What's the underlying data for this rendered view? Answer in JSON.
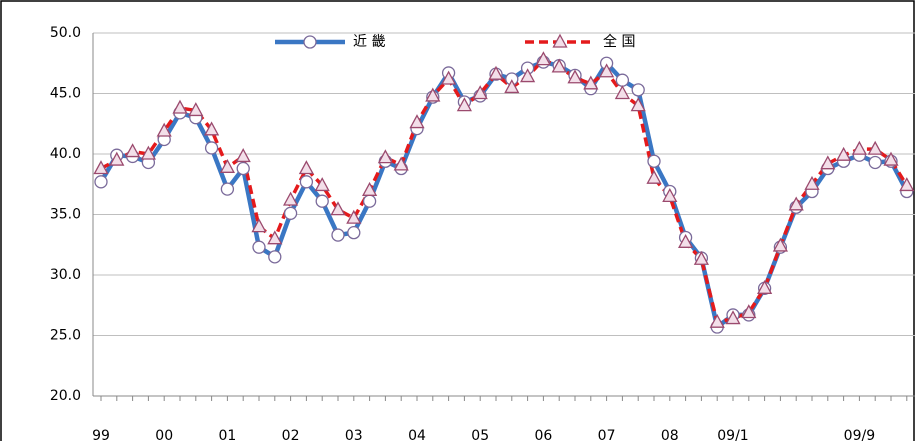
{
  "chart_data": {
    "type": "line",
    "categories": [
      "99",
      null,
      null,
      null,
      "00",
      null,
      null,
      null,
      "01",
      null,
      null,
      null,
      "02",
      null,
      null,
      null,
      "03",
      null,
      null,
      null,
      "04",
      null,
      null,
      null,
      "05",
      null,
      null,
      null,
      "06",
      null,
      null,
      null,
      "07",
      null,
      null,
      null,
      "08",
      null,
      null,
      null,
      "09/1",
      null,
      null,
      null,
      null,
      null,
      null,
      null,
      "09/9",
      null,
      null,
      null
    ],
    "series": [
      {
        "name": "近 畿",
        "color": "#3a77c4",
        "marker": "circle",
        "values": [
          37.7,
          39.9,
          39.8,
          39.3,
          41.2,
          43.4,
          43.0,
          40.5,
          37.1,
          38.8,
          32.3,
          31.5,
          35.1,
          37.7,
          36.1,
          33.3,
          33.5,
          36.1,
          39.4,
          38.8,
          42.1,
          44.7,
          46.7,
          44.3,
          44.8,
          46.6,
          46.2,
          47.1,
          47.6,
          47.3,
          46.5,
          45.4,
          47.5,
          46.1,
          45.3,
          39.4,
          36.9,
          33.1,
          31.4,
          25.7,
          26.7,
          26.7,
          28.9,
          32.3,
          35.6,
          36.9,
          38.8,
          39.4,
          39.9,
          39.3,
          39.4,
          36.9
        ]
      },
      {
        "name": "全 国",
        "color": "#e41a1c",
        "marker": "triangle",
        "dashed": true,
        "values": [
          38.8,
          39.5,
          40.2,
          40.0,
          41.9,
          43.8,
          43.6,
          42.0,
          38.9,
          39.8,
          34.0,
          33.0,
          36.2,
          38.8,
          37.4,
          35.4,
          34.7,
          37.0,
          39.7,
          39.1,
          42.6,
          44.8,
          46.2,
          44.0,
          45.0,
          46.6,
          45.5,
          46.4,
          47.8,
          47.2,
          46.3,
          45.8,
          46.8,
          45.0,
          44.0,
          38.0,
          36.5,
          32.7,
          31.3,
          26.1,
          26.4,
          26.9,
          28.9,
          32.4,
          35.8,
          37.5,
          39.2,
          39.9,
          40.4,
          40.4,
          39.5,
          37.4
        ]
      }
    ],
    "ylim": [
      20,
      50
    ],
    "yticks": [
      {
        "value": 20,
        "label": "20.0"
      },
      {
        "value": 25,
        "label": "25.0"
      },
      {
        "value": 30,
        "label": "30.0"
      },
      {
        "value": 35,
        "label": "35.0"
      },
      {
        "value": 40,
        "label": "40.0"
      },
      {
        "value": 45,
        "label": "45.0"
      },
      {
        "value": 50,
        "label": "50.0"
      }
    ],
    "grid": true,
    "legend": "top"
  }
}
